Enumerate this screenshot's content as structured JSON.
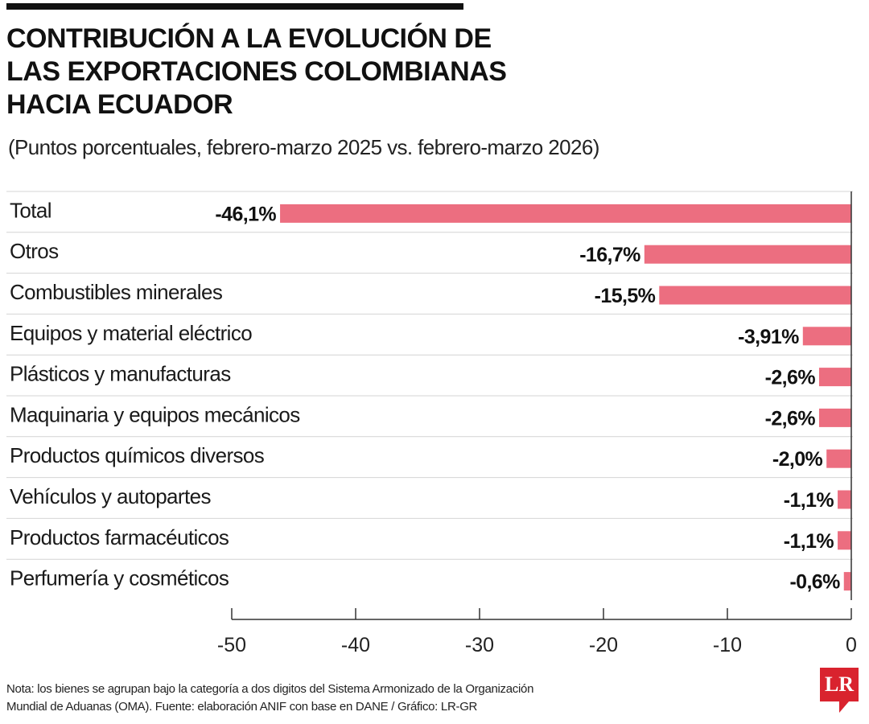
{
  "title": "CONTRIBUCIÓN A LA EVOLUCIÓN DE LAS EXPORTACIONES COLOMBIANAS HACIA ECUADOR",
  "subtitle": "(Puntos porcentuales, febrero-marzo 2025 vs. febrero-marzo 2026)",
  "note": "Nota: los bienes se agrupan bajo la categoría a dos digitos del Sistema Armonizado de la Organización Mundial de Aduanas (OMA). Fuente: elaboración ANIF con base en DANE / Gráfico: LR-GR",
  "logo": "LR",
  "chart_data": {
    "type": "bar",
    "orientation": "horizontal",
    "categories": [
      "Total",
      "Otros",
      "Combustibles minerales",
      "Equipos y material eléctrico",
      "Plásticos y manufacturas",
      "Maquinaria y equipos mecánicos",
      "Productos químicos diversos",
      "Vehículos y autopartes",
      "Productos farmacéuticos",
      "Perfumería y cosméticos"
    ],
    "values": [
      -46.1,
      -16.7,
      -15.5,
      -3.91,
      -2.6,
      -2.6,
      -2.0,
      -1.1,
      -1.1,
      -0.6
    ],
    "value_labels": [
      "-46,1%",
      "-16,7%",
      "-15,5%",
      "-3,91%",
      "-2,6%",
      "-2,6%",
      "-2,0%",
      "-1,1%",
      "-1,1%",
      "-0,6%"
    ],
    "xlim": [
      -50,
      0
    ],
    "xticks": [
      -50,
      -40,
      -30,
      -20,
      -10,
      0
    ],
    "xtick_labels": [
      "-50",
      "-40",
      "-30",
      "-20",
      "-10",
      "0"
    ],
    "bar_color": "#ec6e80",
    "grid": false
  }
}
